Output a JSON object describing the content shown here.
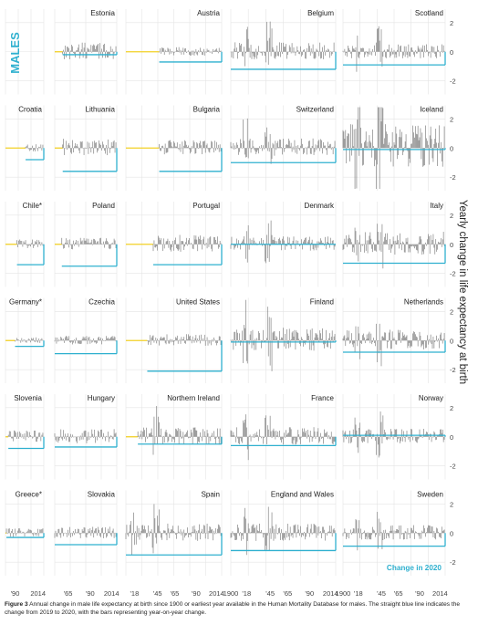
{
  "sex_label": "MALES",
  "y_axis_label": "Yearly change in life expectancy at birth",
  "legend_label": "Change in 2020",
  "caption": {
    "figure_ref": "Figure 3",
    "text": " Annual change in male life expectancy at birth since 1900 or earliest year available in the Human Mortality Database for males. The straight blue line indicates the change from 2019 to 2020, with the bars representing year-on-year change."
  },
  "colors": {
    "bar": "#6e6e6e",
    "change_2020": "#2fb0cf",
    "zero_line": "#f2d024",
    "grid": "#e4e4e4",
    "label": "#222222",
    "males_label": "#2fb0cf"
  },
  "chart_data": {
    "type": "bar",
    "layout": "small-multiples 4 columns x 6 rows",
    "y_range": [
      -2.8,
      2.8
    ],
    "y_ticks": [
      -2,
      0,
      2
    ],
    "x_ticks_by_column": [
      [
        "'90",
        "2014"
      ],
      [
        "'65",
        "'90",
        "2014"
      ],
      [
        "'18",
        "'45",
        "'65",
        "'90",
        "2014"
      ],
      [
        "1900",
        "'18",
        "'45",
        "'65",
        "'90",
        "2014"
      ],
      [
        "1900",
        "'18",
        "'45",
        "'65",
        "'90",
        "2014"
      ]
    ],
    "series_description": "year-on-year change in male life expectancy (bars) with change 2019-2020 (line)",
    "panels": [
      {
        "name": "Estonia",
        "start": 1959,
        "change_2020": -0.2,
        "volatility": 0.6
      },
      {
        "name": "Austria",
        "start": 1947,
        "change_2020": -0.7,
        "volatility": 0.3
      },
      {
        "name": "Belgium",
        "start": 1900,
        "change_2020": -1.2,
        "volatility": 0.6
      },
      {
        "name": "Scotland",
        "start": 1900,
        "change_2020": -0.9,
        "volatility": 0.5
      },
      {
        "name": "Croatia",
        "start": 2001,
        "change_2020": -0.8,
        "volatility": 0.3
      },
      {
        "name": "Lithuania",
        "start": 1959,
        "change_2020": -1.6,
        "volatility": 0.6
      },
      {
        "name": "Bulgaria",
        "start": 1947,
        "change_2020": -1.6,
        "volatility": 0.5
      },
      {
        "name": "Switzerland",
        "start": 1900,
        "change_2020": -1.0,
        "volatility": 0.6
      },
      {
        "name": "Iceland",
        "start": 1900,
        "change_2020": -0.1,
        "volatility": 1.5
      },
      {
        "name": "Chile*",
        "start": 1992,
        "change_2020": -1.4,
        "volatility": 0.3
      },
      {
        "name": "Poland",
        "start": 1958,
        "change_2020": -1.5,
        "volatility": 0.4
      },
      {
        "name": "Portugal",
        "start": 1940,
        "change_2020": -1.4,
        "volatility": 0.6
      },
      {
        "name": "Denmark",
        "start": 1900,
        "change_2020": 0.0,
        "volatility": 0.5
      },
      {
        "name": "Italy",
        "start": 1900,
        "change_2020": -1.3,
        "volatility": 0.8
      },
      {
        "name": "Germany*",
        "start": 1990,
        "change_2020": -0.4,
        "volatility": 0.2
      },
      {
        "name": "Czechia",
        "start": 1950,
        "change_2020": -0.9,
        "volatility": 0.3
      },
      {
        "name": "United States",
        "start": 1933,
        "change_2020": -2.1,
        "volatility": 0.4
      },
      {
        "name": "Finland",
        "start": 1900,
        "change_2020": -0.1,
        "volatility": 0.8
      },
      {
        "name": "Netherlands",
        "start": 1900,
        "change_2020": -0.8,
        "volatility": 0.7
      },
      {
        "name": "Slovenia",
        "start": 1983,
        "change_2020": -0.8,
        "volatility": 0.4
      },
      {
        "name": "Hungary",
        "start": 1950,
        "change_2020": -0.7,
        "volatility": 0.5
      },
      {
        "name": "Northern Ireland",
        "start": 1922,
        "change_2020": -0.5,
        "volatility": 0.6
      },
      {
        "name": "France",
        "start": 1900,
        "change_2020": -0.6,
        "volatility": 0.6
      },
      {
        "name": "Norway",
        "start": 1900,
        "change_2020": 0.1,
        "volatility": 0.5
      },
      {
        "name": "Greece*",
        "start": 1981,
        "change_2020": -0.3,
        "volatility": 0.3
      },
      {
        "name": "Slovakia",
        "start": 1950,
        "change_2020": -0.8,
        "volatility": 0.4
      },
      {
        "name": "Spain",
        "start": 1908,
        "change_2020": -1.5,
        "volatility": 0.6
      },
      {
        "name": "England and Wales",
        "start": 1900,
        "change_2020": -1.2,
        "volatility": 0.6
      },
      {
        "name": "Sweden",
        "start": 1900,
        "change_2020": -0.9,
        "volatility": 0.5
      }
    ]
  }
}
